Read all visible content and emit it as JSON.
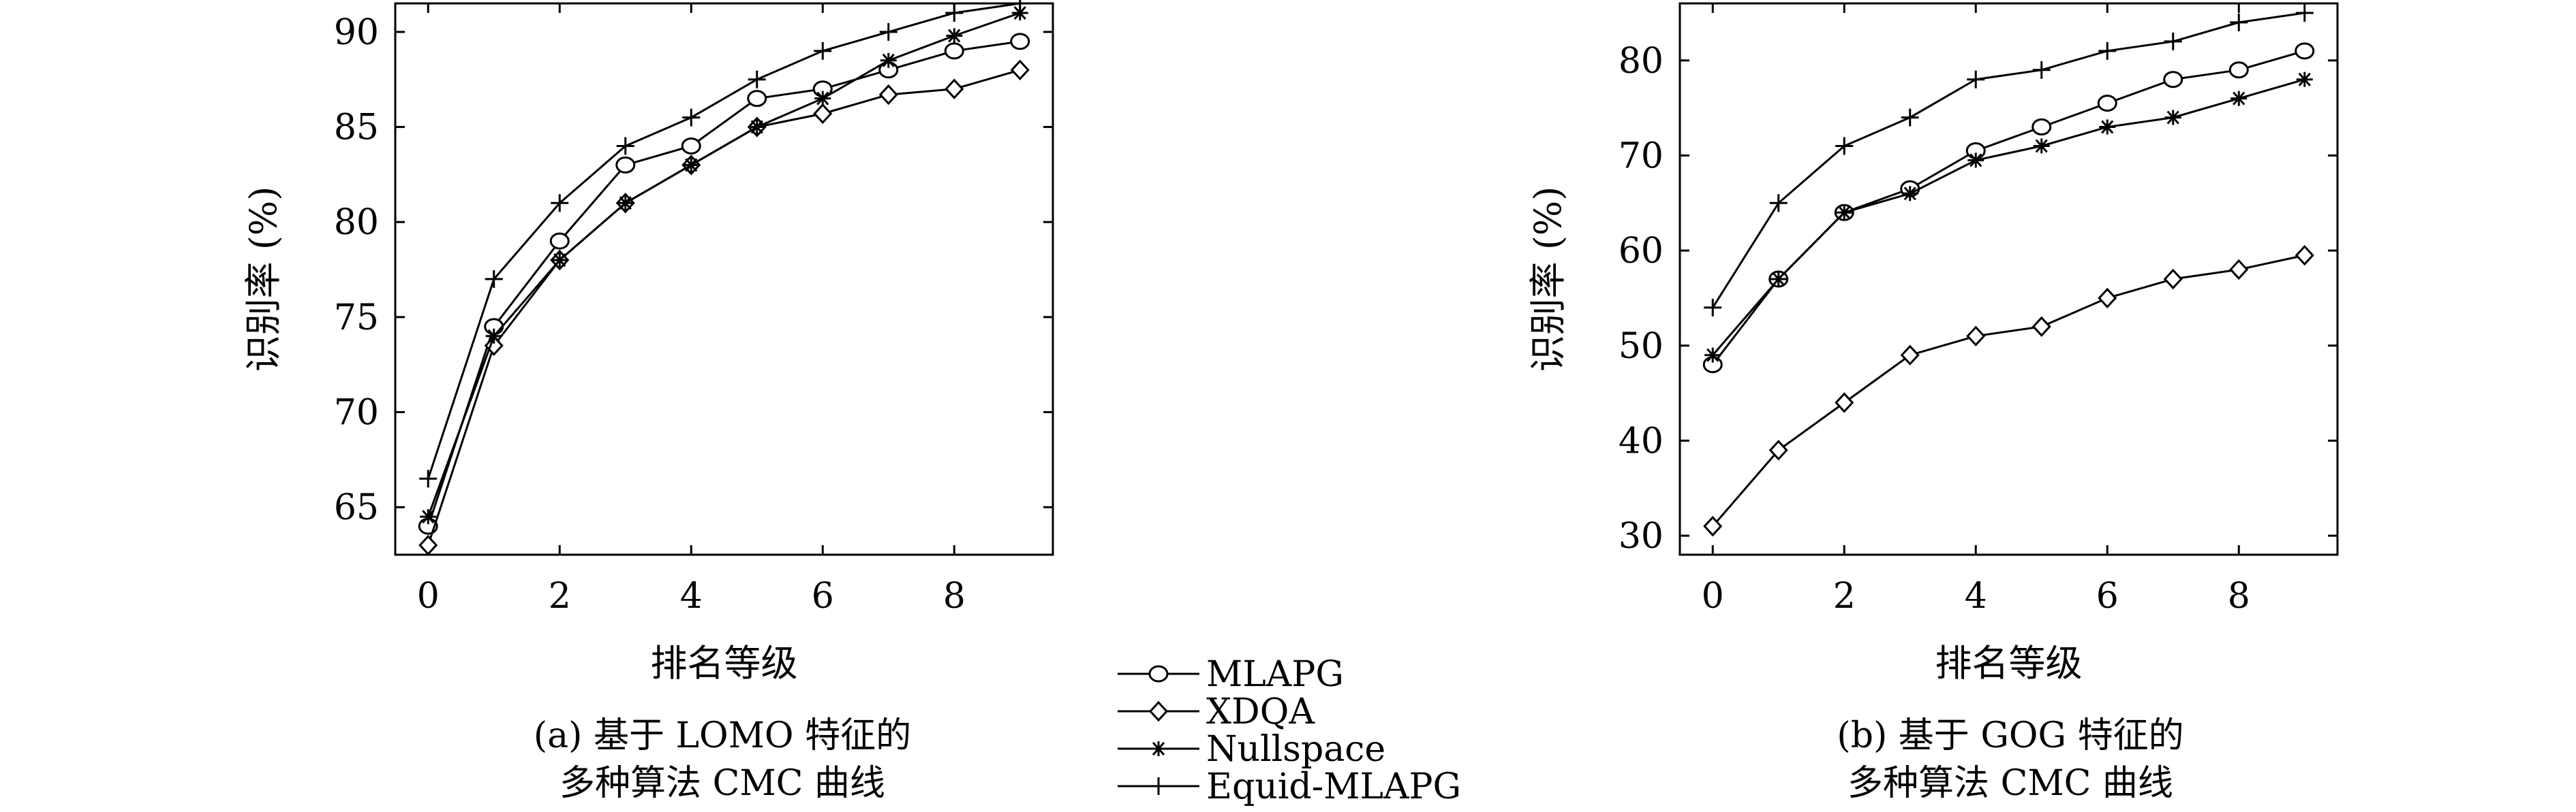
{
  "chart_data": [
    {
      "type": "line",
      "xlabel": "排名等级",
      "ylabel": "识别率 (%)",
      "caption_line1": "(a) 基于 LOMO 特征的",
      "caption_line2": "多种算法 CMC 曲线",
      "xlim": [
        -0.5,
        9.5
      ],
      "ylim": [
        62.5,
        91.5
      ],
      "xticks": [
        0,
        2,
        4,
        6,
        8
      ],
      "yticks": [
        65,
        70,
        75,
        80,
        85,
        90
      ],
      "x": [
        0,
        1,
        2,
        3,
        4,
        5,
        6,
        7,
        8,
        9
      ],
      "series": [
        {
          "name": "MLAPG",
          "marker": "circle",
          "values": [
            64.0,
            74.5,
            79.0,
            83.0,
            84.0,
            86.5,
            87.0,
            88.0,
            89.0,
            89.5
          ]
        },
        {
          "name": "XDQA",
          "marker": "diamond",
          "values": [
            63.0,
            73.5,
            78.0,
            81.0,
            83.0,
            85.0,
            85.7,
            86.7,
            87.0,
            88.0
          ]
        },
        {
          "name": "Nullspace",
          "marker": "asterisk",
          "values": [
            64.5,
            74.0,
            78.0,
            81.0,
            83.0,
            85.0,
            86.5,
            88.5,
            89.8,
            91.0
          ]
        },
        {
          "name": "Equid-MLAPG",
          "marker": "plus",
          "values": [
            66.5,
            77.0,
            81.0,
            84.0,
            85.5,
            87.5,
            89.0,
            90.0,
            91.0,
            91.5
          ]
        }
      ]
    },
    {
      "type": "line",
      "xlabel": "排名等级",
      "ylabel": "识别率 (%)",
      "caption_line1": "(b) 基于 GOG 特征的",
      "caption_line2": "多种算法 CMC 曲线",
      "xlim": [
        -0.5,
        9.5
      ],
      "ylim": [
        28,
        86
      ],
      "xticks": [
        0,
        2,
        4,
        6,
        8
      ],
      "yticks": [
        30,
        40,
        50,
        60,
        70,
        80
      ],
      "x": [
        0,
        1,
        2,
        3,
        4,
        5,
        6,
        7,
        8,
        9
      ],
      "series": [
        {
          "name": "MLAPG",
          "marker": "circle",
          "values": [
            48.0,
            57.0,
            64.0,
            66.5,
            70.5,
            73.0,
            75.5,
            78.0,
            79.0,
            81.0
          ]
        },
        {
          "name": "XDQA",
          "marker": "diamond",
          "values": [
            31.0,
            39.0,
            44.0,
            49.0,
            51.0,
            52.0,
            55.0,
            57.0,
            58.0,
            59.5
          ]
        },
        {
          "name": "Nullspace",
          "marker": "asterisk",
          "values": [
            49.0,
            57.0,
            64.0,
            66.0,
            69.5,
            71.0,
            73.0,
            74.0,
            76.0,
            78.0
          ]
        },
        {
          "name": "Equid-MLAPG",
          "marker": "plus",
          "values": [
            54.0,
            65.0,
            71.0,
            74.0,
            78.0,
            79.0,
            81.0,
            82.0,
            84.0,
            85.0
          ]
        }
      ]
    }
  ],
  "legend": {
    "items": [
      "MLAPG",
      "XDQA",
      "Nullspace",
      "Equid-MLAPG"
    ]
  }
}
